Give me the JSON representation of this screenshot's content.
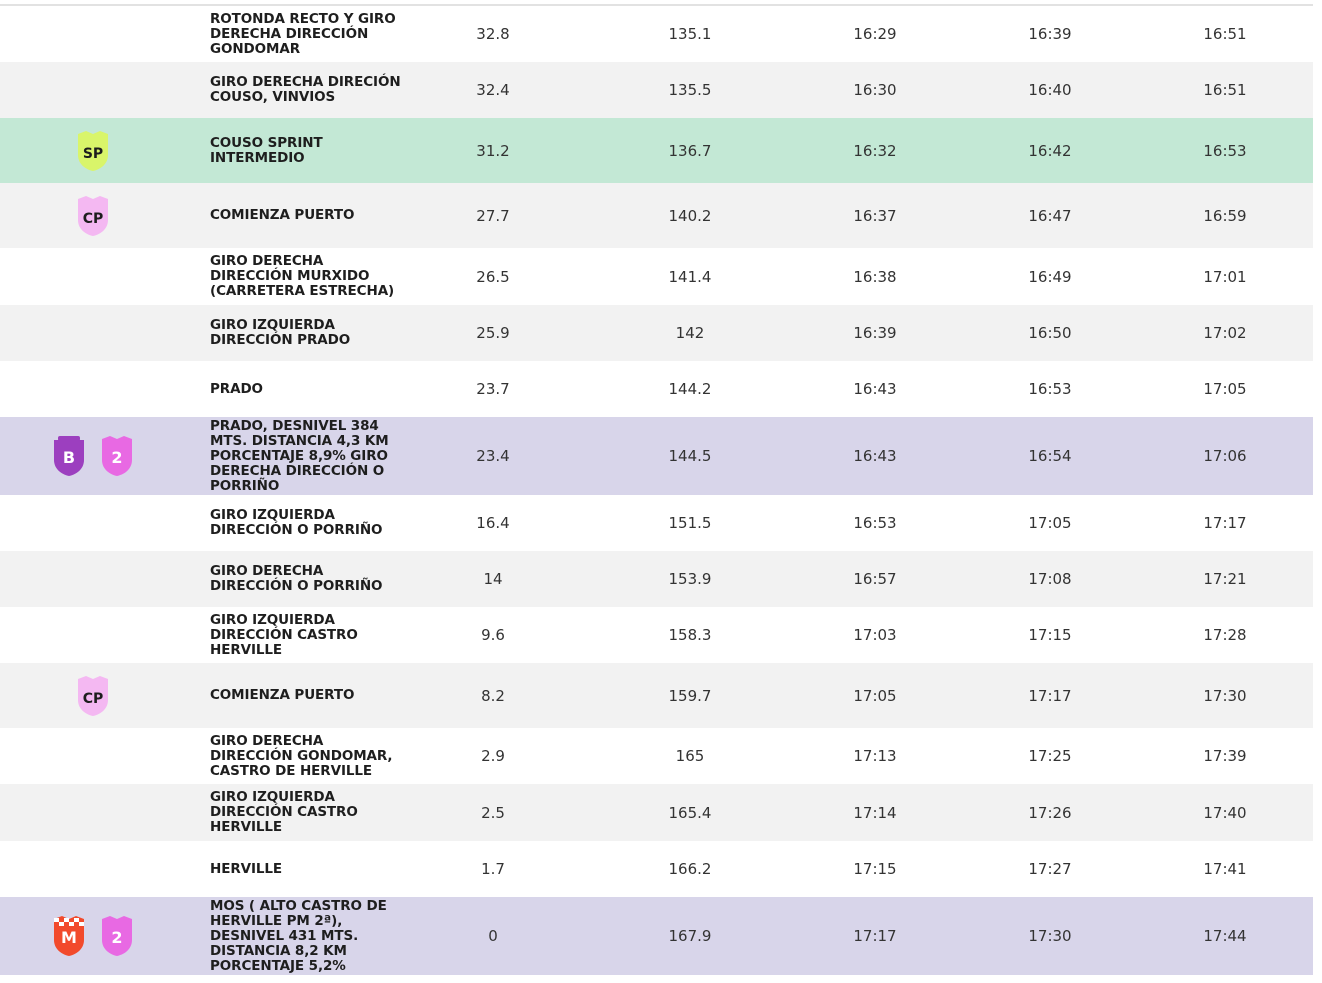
{
  "colors": {
    "row_white": "#ffffff",
    "row_grey": "#f2f2f2",
    "row_sprint": "#c3e8d5",
    "row_mountain": "#d8d5ea",
    "badge_sprint": "#d9f56a",
    "badge_start_climb": "#f4b8f2",
    "badge_bonus": "#9c3fbf",
    "badge_category": "#e869e3",
    "badge_mountain_finish": "#f24a2c"
  },
  "rows": [
    {
      "label": "ROTONDA RECTO Y GIRO DERECHA DIRECCIÓN GONDOMAR",
      "km_to_finish": "32.8",
      "km_done": "135.1",
      "time_fast": "16:29",
      "time_mid": "16:39",
      "time_slow": "16:51",
      "icons": []
    },
    {
      "label": "GIRO DERECHA DIRECIÓN COUSO, VINVIOS",
      "km_to_finish": "32.4",
      "km_done": "135.5",
      "time_fast": "16:30",
      "time_mid": "16:40",
      "time_slow": "16:51",
      "icons": []
    },
    {
      "label": "COUSO SPRINT INTERMEDIO",
      "km_to_finish": "31.2",
      "km_done": "136.7",
      "time_fast": "16:32",
      "time_mid": "16:42",
      "time_slow": "16:53",
      "icons": [
        {
          "text": "SP",
          "name": "sprint-badge-icon"
        }
      ]
    },
    {
      "label": "COMIENZA PUERTO",
      "km_to_finish": "27.7",
      "km_done": "140.2",
      "time_fast": "16:37",
      "time_mid": "16:47",
      "time_slow": "16:59",
      "icons": [
        {
          "text": "CP",
          "name": "start-climb-badge-icon"
        }
      ]
    },
    {
      "label": "GIRO DERECHA DIRECCIÓN MURXIDO (CARRETERA ESTRECHA)",
      "km_to_finish": "26.5",
      "km_done": "141.4",
      "time_fast": "16:38",
      "time_mid": "16:49",
      "time_slow": "17:01",
      "icons": []
    },
    {
      "label": "GIRO IZQUIERDA DIRECCIÓN PRADO",
      "km_to_finish": "25.9",
      "km_done": "142",
      "time_fast": "16:39",
      "time_mid": "16:50",
      "time_slow": "17:02",
      "icons": []
    },
    {
      "label": "PRADO",
      "km_to_finish": "23.7",
      "km_done": "144.2",
      "time_fast": "16:43",
      "time_mid": "16:53",
      "time_slow": "17:05",
      "icons": []
    },
    {
      "label": "PRADO, DESNIVEL 384 MTS. DISTANCIA 4,3 KM PORCENTAJE 8,9% GIRO DERECHA DIRECCIÓN O PORRIÑO",
      "km_to_finish": "23.4",
      "km_done": "144.5",
      "time_fast": "16:43",
      "time_mid": "16:54",
      "time_slow": "17:06",
      "icons": [
        {
          "text": "B",
          "name": "bonus-badge-icon"
        },
        {
          "text": "2",
          "name": "category-2-badge-icon"
        }
      ]
    },
    {
      "label": "GIRO IZQUIERDA DIRECCIÓN O PORRIÑO",
      "km_to_finish": "16.4",
      "km_done": "151.5",
      "time_fast": "16:53",
      "time_mid": "17:05",
      "time_slow": "17:17",
      "icons": []
    },
    {
      "label": "GIRO DERECHA DIRECCIÓN O PORRIÑO",
      "km_to_finish": "14",
      "km_done": "153.9",
      "time_fast": "16:57",
      "time_mid": "17:08",
      "time_slow": "17:21",
      "icons": []
    },
    {
      "label": "GIRO IZQUIERDA DIRECCIÓN CASTRO HERVILLE",
      "km_to_finish": "9.6",
      "km_done": "158.3",
      "time_fast": "17:03",
      "time_mid": "17:15",
      "time_slow": "17:28",
      "icons": []
    },
    {
      "label": "COMIENZA PUERTO",
      "km_to_finish": "8.2",
      "km_done": "159.7",
      "time_fast": "17:05",
      "time_mid": "17:17",
      "time_slow": "17:30",
      "icons": [
        {
          "text": "CP",
          "name": "start-climb-badge-icon"
        }
      ]
    },
    {
      "label": "GIRO DERECHA DIRECCIÓN GONDOMAR, CASTRO DE HERVILLE",
      "km_to_finish": "2.9",
      "km_done": "165",
      "time_fast": "17:13",
      "time_mid": "17:25",
      "time_slow": "17:39",
      "icons": []
    },
    {
      "label": "GIRO IZQUIERDA DIRECCIÓN CASTRO HERVILLE",
      "km_to_finish": "2.5",
      "km_done": "165.4",
      "time_fast": "17:14",
      "time_mid": "17:26",
      "time_slow": "17:40",
      "icons": []
    },
    {
      "label": "HERVILLE",
      "km_to_finish": "1.7",
      "km_done": "166.2",
      "time_fast": "17:15",
      "time_mid": "17:27",
      "time_slow": "17:41",
      "icons": []
    },
    {
      "label": "MOS ( ALTO CASTRO DE HERVILLE PM 2ª), DESNIVEL 431 MTS. DISTANCIA 8,2 KM PORCENTAJE 5,2%",
      "km_to_finish": "0",
      "km_done": "167.9",
      "time_fast": "17:17",
      "time_mid": "17:30",
      "time_slow": "17:44",
      "icons": [
        {
          "text": "M",
          "name": "mountain-finish-badge-icon"
        },
        {
          "text": "2",
          "name": "category-2-badge-icon"
        }
      ]
    }
  ]
}
